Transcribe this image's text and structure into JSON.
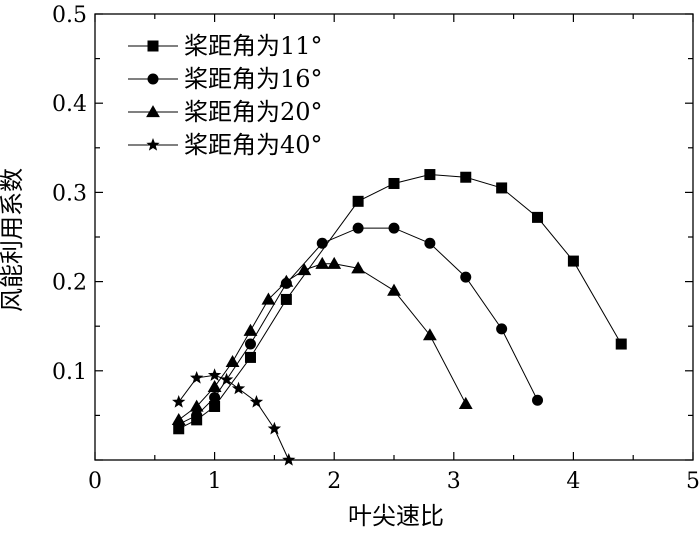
{
  "chart_data": {
    "type": "line",
    "title": "",
    "xlabel": "叶尖速比",
    "ylabel": "风能利用系数",
    "xlim": [
      0,
      5
    ],
    "ylim": [
      0,
      0.5
    ],
    "x_ticks": [
      "0",
      "1",
      "2",
      "3",
      "4",
      "5"
    ],
    "y_ticks": [
      "0.1",
      "0.2",
      "0.3",
      "0.4",
      "0.5"
    ],
    "grid": false,
    "legend_position": "top-left",
    "series": [
      {
        "name": "桨距角为11°",
        "marker": "square",
        "x": [
          0.7,
          0.85,
          1.0,
          1.3,
          1.6,
          2.2,
          2.5,
          2.8,
          3.1,
          3.4,
          3.7,
          4.0,
          4.4
        ],
        "y": [
          0.035,
          0.045,
          0.06,
          0.115,
          0.18,
          0.29,
          0.31,
          0.32,
          0.317,
          0.305,
          0.272,
          0.223,
          0.13
        ]
      },
      {
        "name": "桨距角为16°",
        "marker": "circle",
        "x": [
          0.7,
          0.85,
          1.0,
          1.3,
          1.6,
          1.9,
          2.2,
          2.5,
          2.8,
          3.1,
          3.4,
          3.7
        ],
        "y": [
          0.04,
          0.05,
          0.07,
          0.13,
          0.198,
          0.243,
          0.26,
          0.26,
          0.243,
          0.205,
          0.147,
          0.067
        ]
      },
      {
        "name": "桨距角为20°",
        "marker": "triangle",
        "x": [
          0.7,
          0.85,
          1.0,
          1.15,
          1.3,
          1.45,
          1.6,
          1.75,
          1.9,
          2.0,
          2.2,
          2.5,
          2.8,
          3.1
        ],
        "y": [
          0.045,
          0.06,
          0.082,
          0.11,
          0.145,
          0.18,
          0.2,
          0.213,
          0.22,
          0.22,
          0.215,
          0.19,
          0.14,
          0.063
        ]
      },
      {
        "name": "桨距角为40°",
        "marker": "star",
        "x": [
          0.7,
          0.85,
          1.0,
          1.1,
          1.2,
          1.35,
          1.5,
          1.62
        ],
        "y": [
          0.065,
          0.092,
          0.095,
          0.09,
          0.08,
          0.065,
          0.035,
          0.0
        ]
      }
    ]
  }
}
